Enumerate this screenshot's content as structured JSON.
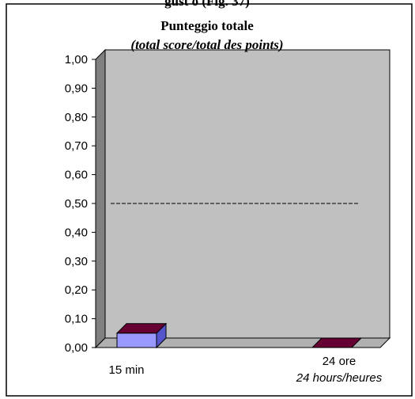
{
  "header_cut_text": "gust o (Fig. 37)",
  "chart_data": {
    "type": "bar",
    "title": "Punteggio totale",
    "subtitle": "(total score/total des points)",
    "categories": [
      {
        "label": "15 min",
        "sublabel": ""
      },
      {
        "label": "24 ore",
        "sublabel": "24 hours/heures"
      }
    ],
    "values": [
      0.05,
      0.0
    ],
    "ylim": [
      0,
      1
    ],
    "yticks": [
      "0,00",
      "0,10",
      "0,20",
      "0,30",
      "0,40",
      "0,50",
      "0,60",
      "0,70",
      "0,80",
      "0,90",
      "1,00"
    ],
    "reference_line": 0.5,
    "colors": {
      "bar1_front": "#9999ff",
      "bar1_top": "#660033",
      "bar2_top": "#660033",
      "bar2_front": "#7a2a55",
      "wall": "#c0c0c0",
      "side_wall": "#808080",
      "floor": "#b0b0b0"
    }
  }
}
